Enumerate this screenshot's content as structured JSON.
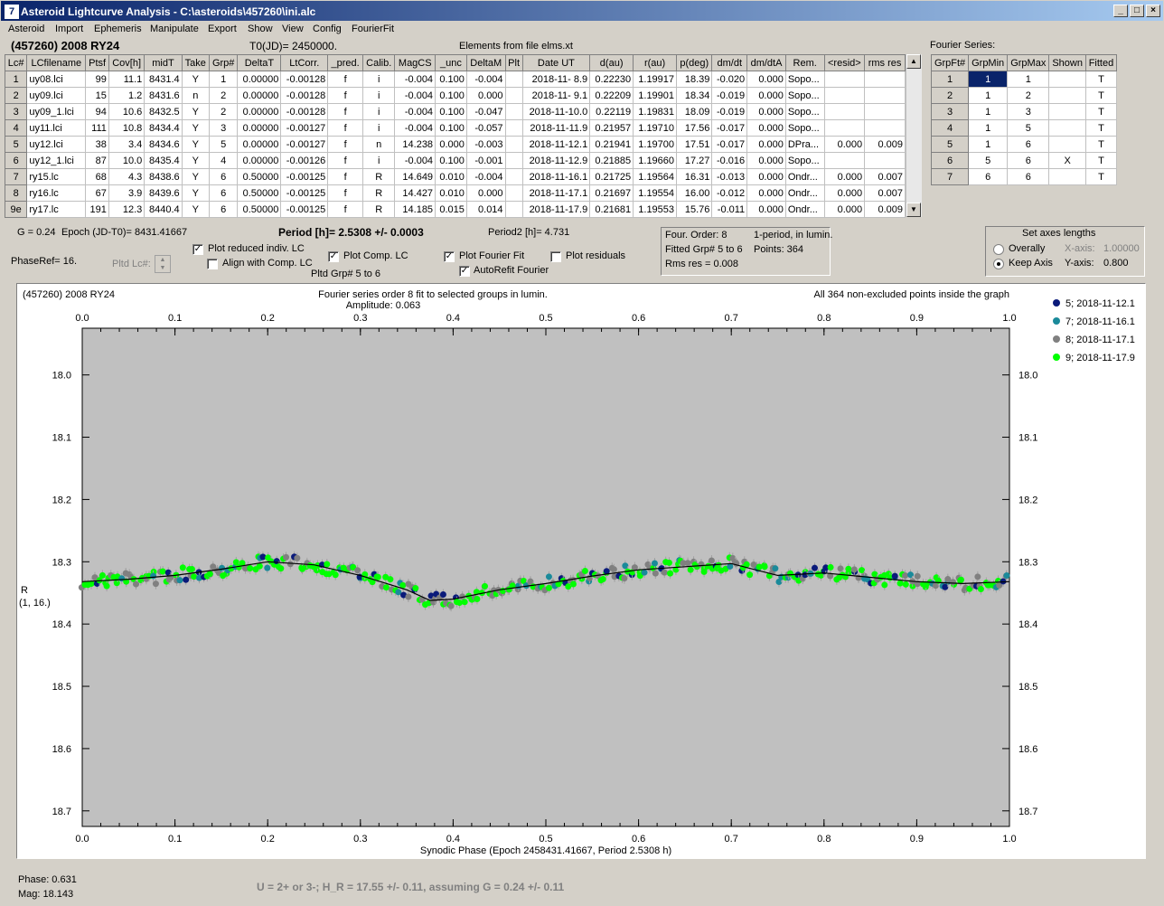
{
  "window": {
    "title": "Asteroid Lightcurve Analysis - C:\\asteroids\\457260\\ini.alc",
    "icon": "app-icon"
  },
  "menu": [
    "Asteroid",
    "Import",
    "Ephemeris",
    "Manipulate",
    "Export",
    "Show",
    "View",
    "Config",
    "FourierFit"
  ],
  "header": {
    "asteroid": "(457260) 2008 RY24",
    "t0": "T0(JD)= 2450000.",
    "elements": "Elements from file elms.xt",
    "fourier_label": "Fourier Series:"
  },
  "lc_table": {
    "columns": [
      "Lc#",
      "LCfilename",
      "Ptsf",
      "Cov[h]",
      "midT",
      "Take",
      "Grp#",
      "DeltaT",
      "LtCorr.",
      "_pred.",
      "Calib.",
      "MagCS",
      "_unc",
      "DeltaM",
      "Plt",
      "Date UT",
      "d(au)",
      "r(au)",
      "p(deg)",
      "dm/dt",
      "dm/dtA",
      "Rem.",
      "<resid>",
      "rms res"
    ],
    "rows": [
      [
        "1",
        "uy08.lci",
        "99",
        "11.1",
        "8431.4",
        "Y",
        "1",
        "0.00000",
        "-0.00128",
        "f",
        "i",
        "-0.004",
        "0.100",
        "-0.004",
        "",
        "2018-11- 8.9",
        "0.22230",
        "1.19917",
        "18.39",
        "-0.020",
        "0.000",
        "Sopo...",
        "",
        ""
      ],
      [
        "2",
        "uy09.lci",
        "15",
        "1.2",
        "8431.6",
        "n",
        "2",
        "0.00000",
        "-0.00128",
        "f",
        "i",
        "-0.004",
        "0.100",
        "0.000",
        "",
        "2018-11- 9.1",
        "0.22209",
        "1.19901",
        "18.34",
        "-0.019",
        "0.000",
        "Sopo...",
        "",
        ""
      ],
      [
        "3",
        "uy09_1.lci",
        "94",
        "10.6",
        "8432.5",
        "Y",
        "2",
        "0.00000",
        "-0.00128",
        "f",
        "i",
        "-0.004",
        "0.100",
        "-0.047",
        "",
        "2018-11-10.0",
        "0.22119",
        "1.19831",
        "18.09",
        "-0.019",
        "0.000",
        "Sopo...",
        "",
        ""
      ],
      [
        "4",
        "uy11.lci",
        "111",
        "10.8",
        "8434.4",
        "Y",
        "3",
        "0.00000",
        "-0.00127",
        "f",
        "i",
        "-0.004",
        "0.100",
        "-0.057",
        "",
        "2018-11-11.9",
        "0.21957",
        "1.19710",
        "17.56",
        "-0.017",
        "0.000",
        "Sopo...",
        "",
        ""
      ],
      [
        "5",
        "uy12.lci",
        "38",
        "3.4",
        "8434.6",
        "Y",
        "5",
        "0.00000",
        "-0.00127",
        "f",
        "n",
        "14.238",
        "0.000",
        "-0.003",
        "",
        "2018-11-12.1",
        "0.21941",
        "1.19700",
        "17.51",
        "-0.017",
        "0.000",
        "DPra...",
        "0.000",
        "0.009"
      ],
      [
        "6",
        "uy12_1.lci",
        "87",
        "10.0",
        "8435.4",
        "Y",
        "4",
        "0.00000",
        "-0.00126",
        "f",
        "i",
        "-0.004",
        "0.100",
        "-0.001",
        "",
        "2018-11-12.9",
        "0.21885",
        "1.19660",
        "17.27",
        "-0.016",
        "0.000",
        "Sopo...",
        "",
        ""
      ],
      [
        "7",
        "ry15.lc",
        "68",
        "4.3",
        "8438.6",
        "Y",
        "6",
        "0.50000",
        "-0.00125",
        "f",
        "R",
        "14.649",
        "0.010",
        "-0.004",
        "",
        "2018-11-16.1",
        "0.21725",
        "1.19564",
        "16.31",
        "-0.013",
        "0.000",
        "Ondr...",
        "0.000",
        "0.007"
      ],
      [
        "8",
        "ry16.lc",
        "67",
        "3.9",
        "8439.6",
        "Y",
        "6",
        "0.50000",
        "-0.00125",
        "f",
        "R",
        "14.427",
        "0.010",
        "0.000",
        "",
        "2018-11-17.1",
        "0.21697",
        "1.19554",
        "16.00",
        "-0.012",
        "0.000",
        "Ondr...",
        "0.000",
        "0.007"
      ],
      [
        "9e",
        "ry17.lc",
        "191",
        "12.3",
        "8440.4",
        "Y",
        "6",
        "0.50000",
        "-0.00125",
        "f",
        "R",
        "14.185",
        "0.015",
        "0.014",
        "",
        "2018-11-17.9",
        "0.21681",
        "1.19553",
        "15.76",
        "-0.011",
        "0.000",
        "Ondr...",
        "0.000",
        "0.009"
      ]
    ]
  },
  "fourier_table": {
    "columns": [
      "GrpFt#",
      "GrpMin",
      "GrpMax",
      "Shown",
      "Fitted"
    ],
    "rows": [
      [
        "1",
        "1",
        "1",
        "",
        "T"
      ],
      [
        "2",
        "1",
        "2",
        "",
        "T"
      ],
      [
        "3",
        "1",
        "3",
        "",
        "T"
      ],
      [
        "4",
        "1",
        "5",
        "",
        "T"
      ],
      [
        "5",
        "1",
        "6",
        "",
        "T"
      ],
      [
        "6",
        "5",
        "6",
        "X",
        "T"
      ],
      [
        "7",
        "6",
        "6",
        "",
        "T"
      ]
    ]
  },
  "params": {
    "g": "G = 0.24",
    "epoch": "Epoch (JD-T0)= 8431.41667",
    "period": "Period [h]= 2.5308 +/- 0.0003",
    "period2": "Period2 [h]= 4.731",
    "phaseref": "PhaseRef= 16.",
    "pltd_lc": "Pltd Lc#:",
    "pltd_grp": "Pltd Grp#  5  to  6"
  },
  "checkboxes": [
    {
      "label": "Plot reduced indiv. LC",
      "checked": true
    },
    {
      "label": "Align with Comp. LC",
      "checked": false
    },
    {
      "label": "Plot Comp. LC",
      "checked": true
    },
    {
      "label": "Plot Fourier Fit",
      "checked": true
    },
    {
      "label": "AutoRefit Fourier",
      "checked": true
    },
    {
      "label": "Plot residuals",
      "checked": false
    }
  ],
  "fourier_info": {
    "order": "Four. Order:  8",
    "period_mode": "1-period, in lumin.",
    "fitted": "Fitted Grp# 5 to 6",
    "points": "Points: 364",
    "rms": "Rms res      = 0.008"
  },
  "axes_panel": {
    "title": "Set axes lengths",
    "overally": "Overally",
    "keep": "Keep Axis",
    "xaxis_label": "X-axis:",
    "xaxis_val": "1.00000",
    "yaxis_label": "Y-axis:",
    "yaxis_val": "0.800"
  },
  "chart_data": {
    "type": "scatter",
    "title_left": "(457260) 2008 RY24",
    "title_center": "Fourier series order 8 fit to selected groups in lumin.",
    "amplitude": "Amplitude: 0.063",
    "title_right": "All 364 non-excluded points inside the graph",
    "xlabel": "Synodic Phase (Epoch 2458431.41667, Period 2.5308 h)",
    "ylabel": "R",
    "ylabel2": "(1, 16.)",
    "xlim": [
      0.0,
      1.0
    ],
    "ylim": [
      17.925,
      18.725
    ],
    "x_ticks": [
      "0.0",
      "0.1",
      "0.2",
      "0.3",
      "0.4",
      "0.5",
      "0.6",
      "0.7",
      "0.8",
      "0.9",
      "1.0"
    ],
    "y_ticks": [
      "18.0",
      "18.1",
      "18.2",
      "18.3",
      "18.4",
      "18.5",
      "18.6",
      "18.7"
    ],
    "fit_curve": {
      "x": [
        0,
        0.05,
        0.1,
        0.15,
        0.2,
        0.25,
        0.3,
        0.35,
        0.375,
        0.4,
        0.45,
        0.5,
        0.55,
        0.6,
        0.65,
        0.7,
        0.75,
        0.8,
        0.85,
        0.9,
        0.95,
        1.0
      ],
      "y": [
        18.332,
        18.328,
        18.322,
        18.312,
        18.3,
        18.305,
        18.322,
        18.345,
        18.362,
        18.36,
        18.345,
        18.335,
        18.323,
        18.313,
        18.308,
        18.303,
        18.322,
        18.318,
        18.325,
        18.332,
        18.335,
        18.332
      ]
    },
    "series": [
      {
        "name": "5; 2018-11-12.1",
        "color": "#0a1a7a"
      },
      {
        "name": "7; 2018-11-16.1",
        "color": "#1a8a9a"
      },
      {
        "name": "8; 2018-11-17.1",
        "color": "#808080"
      },
      {
        "name": "9; 2018-11-17.9",
        "color": "#00ff00"
      }
    ]
  },
  "status": {
    "phase": "Phase:  0.631",
    "mag": "Mag:    18.143",
    "result": "U = 2+ or 3-; H_R = 17.55 +/- 0.11, assuming G = 0.24 +/- 0.11"
  }
}
